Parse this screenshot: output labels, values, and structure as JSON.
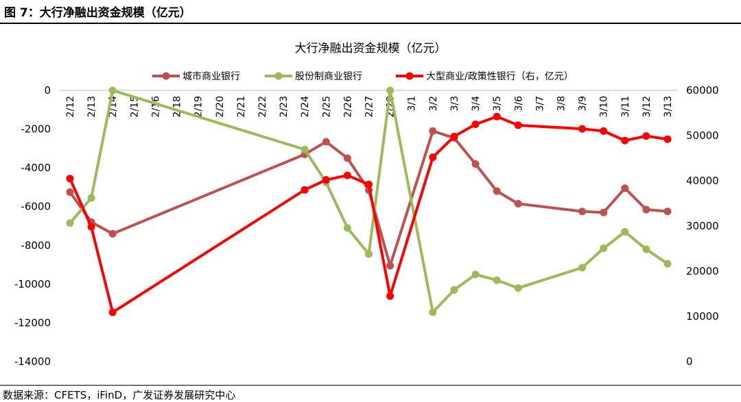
{
  "header": {
    "figure_title": "图 7：大行净融出资金规模（亿元）"
  },
  "footer": {
    "source": "数据来源：CFETS，iFinD，广发证券发展研究中心"
  },
  "chart_data": {
    "type": "line",
    "title": "大行净融出资金规模（亿元）",
    "categories": [
      "2/12",
      "2/13",
      "2/14",
      "2/15",
      "2/16",
      "2/18",
      "2/19",
      "2/20",
      "2/21",
      "2/22",
      "2/23",
      "2/24",
      "2/25",
      "2/26",
      "2/27",
      "2/28",
      "3/1",
      "3/2",
      "3/3",
      "3/4",
      "3/5",
      "3/6",
      "3/7",
      "3/8",
      "3/9",
      "3/10",
      "3/11",
      "3/12",
      "3/13"
    ],
    "left_axis": {
      "min": -14000,
      "max": 0,
      "ticks": [
        "0",
        "-2000",
        "-4000",
        "-6000",
        "-8000",
        "-10000",
        "-12000",
        "-14000"
      ]
    },
    "right_axis": {
      "min": 0,
      "max": 60000,
      "ticks": [
        "60000",
        "50000",
        "40000",
        "30000",
        "20000",
        "10000",
        "0"
      ]
    },
    "legend_position": "top",
    "series": [
      {
        "name": "城市商业银行",
        "axis": "left",
        "color": "#C0504D",
        "points": [
          [
            "2/12",
            -5250
          ],
          [
            "2/13",
            -6800
          ],
          [
            "2/14",
            -7400
          ],
          [
            "2/24",
            -3300
          ],
          [
            "2/25",
            -2650
          ],
          [
            "2/26",
            -3500
          ],
          [
            "2/27",
            -5150
          ],
          [
            "2/28",
            -9050
          ],
          [
            "3/2",
            -2100
          ],
          [
            "3/3",
            -2450
          ],
          [
            "3/4",
            -3800
          ],
          [
            "3/5",
            -5200
          ],
          [
            "3/6",
            -5850
          ],
          [
            "3/9",
            -6250
          ],
          [
            "3/10",
            -6300
          ],
          [
            "3/11",
            -5050
          ],
          [
            "3/12",
            -6150
          ],
          [
            "3/13",
            -6250
          ]
        ]
      },
      {
        "name": "股份制商业银行",
        "axis": "left",
        "color": "#9BBB59",
        "points": [
          [
            "2/12",
            -6850
          ],
          [
            "2/13",
            -5550
          ],
          [
            "2/14",
            0
          ],
          [
            "2/24",
            -3050
          ],
          [
            "2/25",
            -4750
          ],
          [
            "2/26",
            -7100
          ],
          [
            "2/27",
            -8450
          ],
          [
            "2/28",
            0
          ],
          [
            "3/2",
            -11450
          ],
          [
            "3/3",
            -10300
          ],
          [
            "3/4",
            -9500
          ],
          [
            "3/5",
            -9800
          ],
          [
            "3/6",
            -10200
          ],
          [
            "3/9",
            -9150
          ],
          [
            "3/10",
            -8150
          ],
          [
            "3/11",
            -7300
          ],
          [
            "3/12",
            -8200
          ],
          [
            "3/13",
            -8950
          ]
        ]
      },
      {
        "name": "大型商业/政策性银行（右，亿元）",
        "axis": "right",
        "color": "#FF0000",
        "points": [
          [
            "2/12",
            40500
          ],
          [
            "2/13",
            29800
          ],
          [
            "2/14",
            10900
          ],
          [
            "2/24",
            38000
          ],
          [
            "2/25",
            40200
          ],
          [
            "2/26",
            41200
          ],
          [
            "2/27",
            39200
          ],
          [
            "2/28",
            14500
          ],
          [
            "3/2",
            45200
          ],
          [
            "3/3",
            49800
          ],
          [
            "3/4",
            52500
          ],
          [
            "3/5",
            54200
          ],
          [
            "3/6",
            52300
          ],
          [
            "3/9",
            51500
          ],
          [
            "3/10",
            51000
          ],
          [
            "3/11",
            48900
          ],
          [
            "3/12",
            49900
          ],
          [
            "3/13",
            49200
          ]
        ]
      }
    ]
  }
}
